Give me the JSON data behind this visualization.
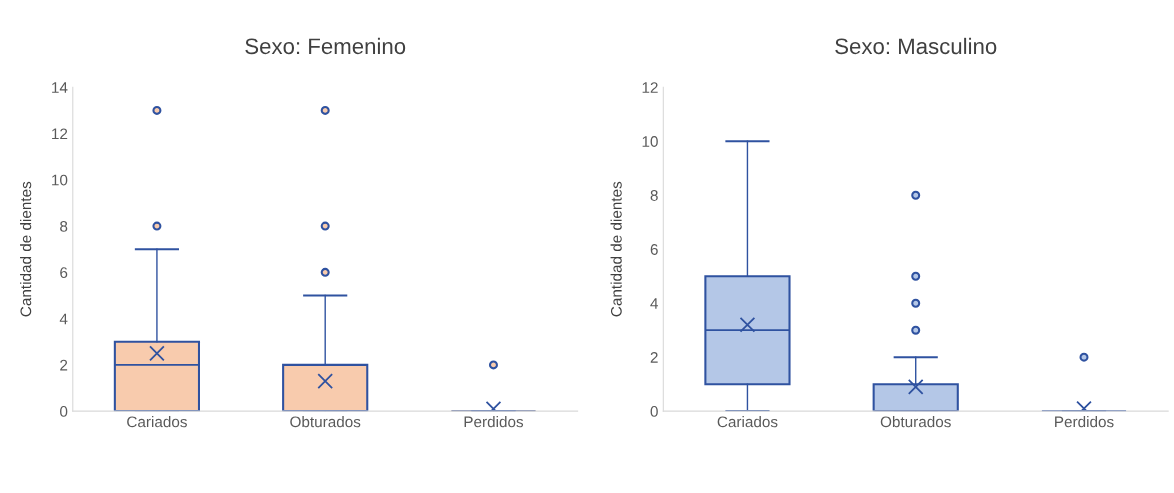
{
  "chart_data": [
    {
      "type": "box",
      "title": "Sexo: Femenino",
      "ylabel": "Cantidad de dientes",
      "categories": [
        "Cariados",
        "Obturados",
        "Perdidos"
      ],
      "ylim": [
        0,
        14
      ],
      "yticks": [
        0,
        2,
        4,
        6,
        8,
        10,
        12,
        14
      ],
      "grid": false,
      "legend": false,
      "series": [
        {
          "color": "#f8cbad",
          "boxes": [
            {
              "low": 0,
              "q1": 0,
              "median": 2,
              "q3": 3,
              "high": 7,
              "mean": 2.5,
              "outliers": [
                8,
                13
              ]
            },
            {
              "low": 0,
              "q1": 0,
              "median": 0,
              "q3": 2,
              "high": 5,
              "mean": 1.3,
              "outliers": [
                6,
                8,
                13
              ]
            },
            {
              "low": 0,
              "q1": 0,
              "median": 0,
              "q3": 0,
              "high": 0,
              "mean": 0.1,
              "outliers": [
                2
              ]
            }
          ]
        }
      ]
    },
    {
      "type": "box",
      "title": "Sexo: Masculino",
      "ylabel": "Cantidad de dientes",
      "categories": [
        "Cariados",
        "Obturados",
        "Perdidos"
      ],
      "ylim": [
        0,
        12
      ],
      "yticks": [
        0,
        2,
        4,
        6,
        8,
        10,
        12
      ],
      "grid": false,
      "legend": false,
      "series": [
        {
          "color": "#b4c7e7",
          "boxes": [
            {
              "low": 0,
              "q1": 1,
              "median": 3,
              "q3": 5,
              "high": 10,
              "mean": 3.2
            },
            {
              "low": 0,
              "q1": 0,
              "median": 0,
              "q3": 1,
              "high": 2,
              "mean": 0.9,
              "outliers": [
                3,
                4,
                5,
                8
              ]
            },
            {
              "low": 0,
              "q1": 0,
              "median": 0,
              "q3": 0,
              "high": 0,
              "mean": 0.1,
              "outliers": [
                2
              ]
            }
          ]
        }
      ]
    }
  ]
}
